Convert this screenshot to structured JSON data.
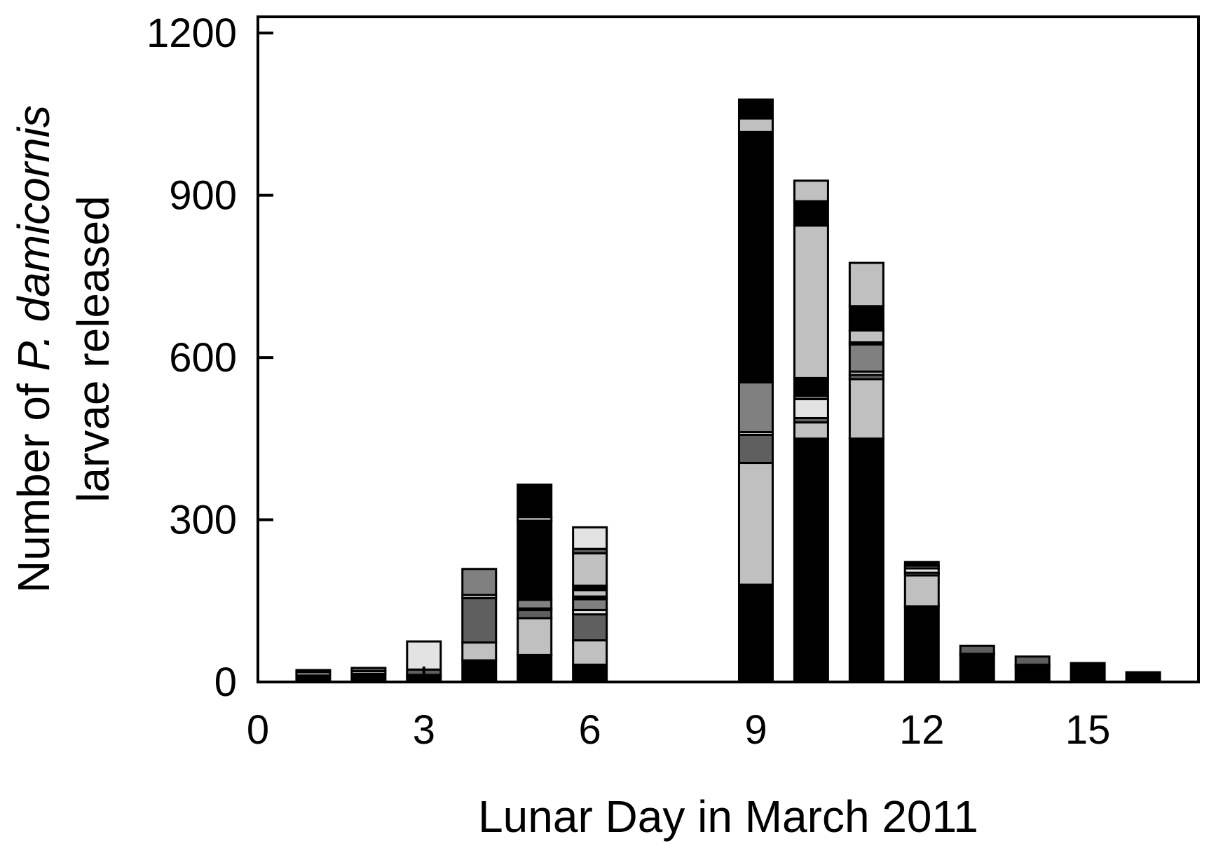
{
  "chart_data": {
    "type": "bar",
    "stacked": true,
    "title": "",
    "xlabel": "Lunar Day in March 2011",
    "ylabel": {
      "line1_prefix": "Number of ",
      "line1_italic": "P. damicornis",
      "line2": "larvae released"
    },
    "xlim": [
      0,
      17
    ],
    "ylim": [
      0,
      1230
    ],
    "x_ticks": [
      0,
      3,
      6,
      9,
      12,
      15
    ],
    "y_ticks": [
      0,
      300,
      600,
      900,
      1200
    ],
    "grid": false,
    "legend": "none",
    "palette": [
      "#000000",
      "#c0c0c0",
      "#5f5f5f",
      "#e3e3e3",
      "#808080",
      "#000000",
      "#c0c0c0"
    ],
    "stacks": [
      {
        "x": 1,
        "segments": [
          12,
          6,
          4
        ]
      },
      {
        "x": 2,
        "segments": [
          15,
          5,
          6
        ]
      },
      {
        "x": 3,
        "segments": [
          10,
          3,
          10,
          52
        ]
      },
      {
        "x": 4,
        "segments": [
          40,
          33,
          82,
          6,
          48
        ]
      },
      {
        "x": 5,
        "segments": [
          50,
          68,
          15,
          3,
          16,
          146,
          7,
          60
        ]
      },
      {
        "x": 6,
        "segments": [
          32,
          45,
          48,
          8,
          20,
          5,
          12,
          8,
          60,
          8,
          40
        ]
      },
      {
        "x": 9,
        "segments": [
          180,
          225,
          52,
          5,
          92,
          463,
          25,
          35
        ]
      },
      {
        "x": 10,
        "segments": [
          450,
          30,
          8,
          35,
          6,
          33,
          282,
          45,
          38
        ]
      },
      {
        "x": 11,
        "segments": [
          450,
          110,
          8,
          6,
          50,
          4,
          22,
          45,
          80
        ]
      },
      {
        "x": 12,
        "segments": [
          140,
          57,
          5,
          8,
          5,
          7
        ]
      },
      {
        "x": 13,
        "segments": [
          48,
          4,
          15
        ]
      },
      {
        "x": 14,
        "segments": [
          28,
          4,
          15
        ]
      },
      {
        "x": 15,
        "segments": [
          35
        ]
      },
      {
        "x": 16,
        "segments": [
          18
        ]
      }
    ]
  }
}
